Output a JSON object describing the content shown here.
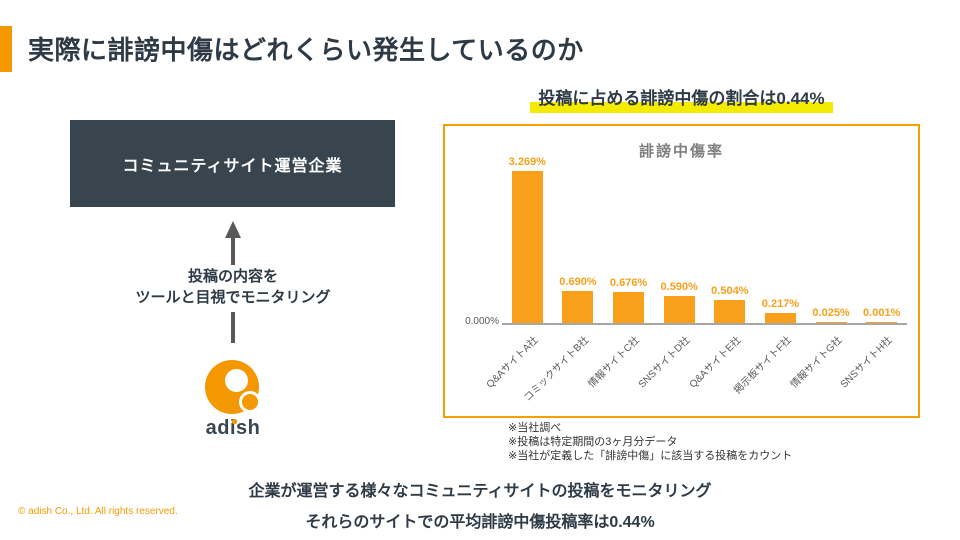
{
  "page": {
    "title": "実際に誹謗中傷はどれくらい発生しているのか",
    "highlight": "投稿に占める誹謗中傷の割合は0.44%",
    "flow": {
      "box_label": "コミュニティサイト運営企業",
      "caption_line1": "投稿の内容を",
      "caption_line2": "ツールと目視でモニタリング",
      "logo_text": "adish"
    },
    "footnotes": [
      "※当社調べ",
      "※投稿は特定期間の3ヶ月分データ",
      "※当社が定義した「誹謗中傷」に該当する投稿をカウント"
    ],
    "summary_line1": "企業が運営する様々なコミュニティサイトの投稿をモニタリング",
    "summary_line2": "それらのサイトでの平均誹謗中傷投稿率は0.44%",
    "copyright": "© adish Co., Ltd. All rights reserved."
  },
  "colors": {
    "orange_accent": "#F39800",
    "bar_orange": "#F9A01B",
    "chart_border": "#F5A000",
    "highlight_yellow": "#F5EB00",
    "slate_text": "#2E3B46",
    "box_background": "#39454E",
    "arrow_gray": "#595959",
    "chart_title_gray": "#7F7F7F",
    "axis_gray": "#A6A6A6"
  },
  "chart_data": {
    "type": "bar",
    "title": "誹謗中傷率",
    "categories": [
      "Q&AサイトA社",
      "コミックサイトB社",
      "情報サイトC社",
      "SNSサイトD社",
      "Q&AサイトE社",
      "掲示板サイトF社",
      "情報サイトG社",
      "SNSサイトH社"
    ],
    "values": [
      3.269,
      0.69,
      0.676,
      0.59,
      0.504,
      0.217,
      0.025,
      0.001
    ],
    "value_labels": [
      "3.269%",
      "0.690%",
      "0.676%",
      "0.590%",
      "0.504%",
      "0.217%",
      "0.025%",
      "0.001%"
    ],
    "baseline_label": "0.000%",
    "xlabel": "",
    "ylabel": "",
    "ylim": [
      0,
      3.5
    ],
    "grid": false,
    "legend": false,
    "bar_color": "#F9A01B"
  }
}
